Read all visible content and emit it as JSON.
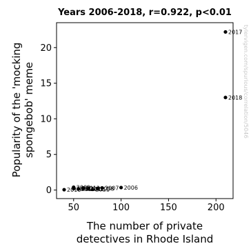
{
  "chart_data": {
    "type": "scatter",
    "title": "Years 2006-2018, r=0.922, p<0.01",
    "xlabel": [
      "The number of private",
      "detectives in Rhode Island"
    ],
    "ylabel": [
      "Popularity of the 'mocking",
      "spongebob' meme"
    ],
    "xlim": [
      32,
      218
    ],
    "ylim": [
      -1.2,
      23.5
    ],
    "xticks": [
      50,
      100,
      150,
      200
    ],
    "yticks": [
      0,
      5,
      10,
      15,
      20
    ],
    "grid": false,
    "color": "#000000",
    "points": [
      {
        "x": 100,
        "y": 0.35,
        "label": "2006"
      },
      {
        "x": 80,
        "y": 0.3,
        "label": "2007"
      },
      {
        "x": 75,
        "y": 0.2,
        "label": "2008"
      },
      {
        "x": 50,
        "y": 0.4,
        "label": "2009"
      },
      {
        "x": 60,
        "y": 0.2,
        "label": "2010"
      },
      {
        "x": 70,
        "y": 0.1,
        "label": "2011"
      },
      {
        "x": 65,
        "y": 0.15,
        "label": "2012"
      },
      {
        "x": 60,
        "y": 0.3,
        "label": "2013"
      },
      {
        "x": 50,
        "y": 0.2,
        "label": "2014"
      },
      {
        "x": 55,
        "y": 0.15,
        "label": "2015"
      },
      {
        "x": 40,
        "y": 0.05,
        "label": "2016"
      },
      {
        "x": 210,
        "y": 22.2,
        "label": "2017"
      },
      {
        "x": 210,
        "y": 13.0,
        "label": "2018"
      }
    ]
  },
  "watermark": "tylervigen.com/spurious/correlation/5046"
}
